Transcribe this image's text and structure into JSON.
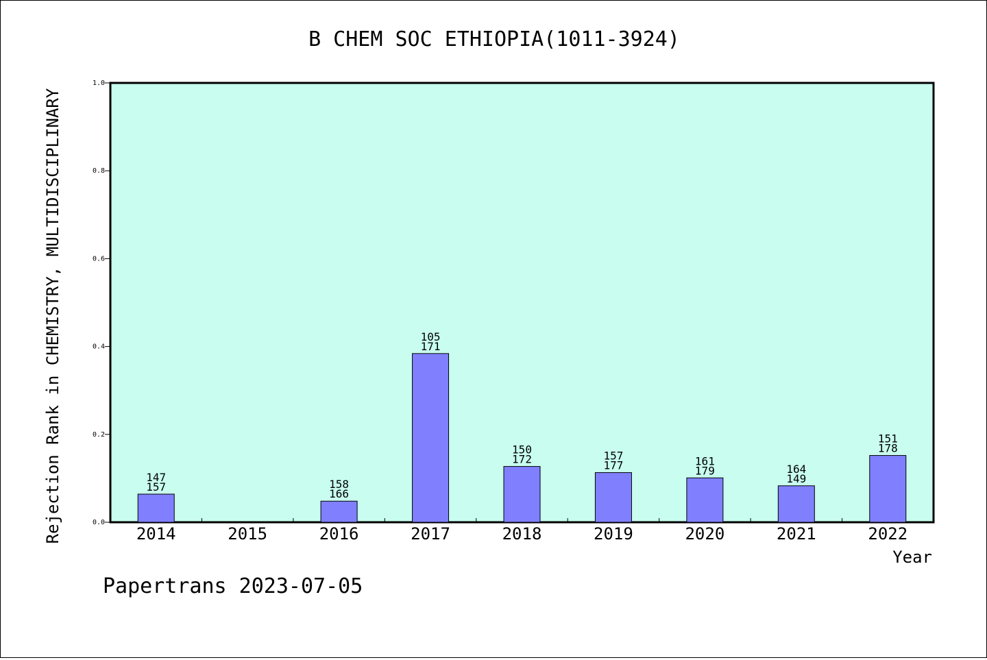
{
  "chart_data": {
    "type": "bar",
    "title": "B CHEM SOC ETHIOPIA(1011-3924)",
    "xlabel": "Year",
    "ylabel": "Rejection Rank in CHEMISTRY, MULTIDISCIPLINARY",
    "ylim": [
      0,
      1.0
    ],
    "yticks": [
      "0.0",
      "0.2",
      "0.4",
      "0.6",
      "0.8",
      "1.0"
    ],
    "categories": [
      "2014",
      "2015",
      "2016",
      "2017",
      "2018",
      "2019",
      "2020",
      "2021",
      "2022"
    ],
    "values": [
      0.064,
      null,
      0.048,
      0.384,
      0.127,
      0.113,
      0.101,
      0.083,
      0.152
    ],
    "labels_top": [
      "147",
      "",
      "158",
      "105",
      "150",
      "157",
      "161",
      "164",
      "151"
    ],
    "labels_bottom": [
      "157",
      "",
      "166",
      "171",
      "172",
      "177",
      "179",
      "149",
      "178"
    ],
    "grid": false,
    "colors": {
      "plot_background": "#c8fdef",
      "bar_fill": "#8080ff",
      "bar_stroke": "#000000"
    }
  },
  "footer": {
    "credit": "Papertrans 2023-07-05"
  }
}
